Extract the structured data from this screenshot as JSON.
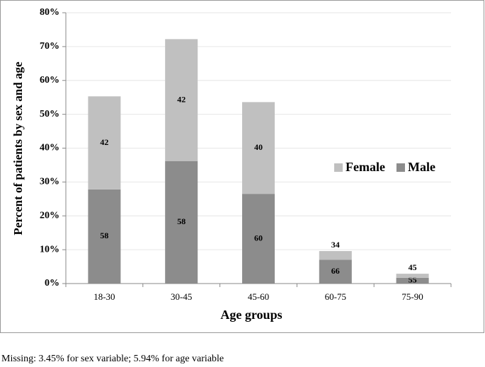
{
  "chart_data": {
    "type": "stacked-bar",
    "categories": [
      "18-30",
      "30-45",
      "45-60",
      "60-75",
      "75-90"
    ],
    "series": [
      {
        "name": "Male",
        "color": "#8c8c8c",
        "values": [
          27.8,
          36.2,
          26.5,
          7.0,
          1.7
        ],
        "labels": [
          58,
          58,
          60,
          66,
          55
        ]
      },
      {
        "name": "Female",
        "color": "#c0c0c0",
        "values": [
          27.5,
          36.0,
          27.1,
          2.6,
          1.2
        ],
        "labels": [
          42,
          42,
          40,
          34,
          45
        ]
      }
    ],
    "ylim": [
      0,
      80
    ],
    "yticks": [
      {
        "value": 0,
        "label": "0%"
      },
      {
        "value": 10,
        "label": "10%"
      },
      {
        "value": 20,
        "label": "20%"
      },
      {
        "value": 30,
        "label": "30%"
      },
      {
        "value": 40,
        "label": "40%"
      },
      {
        "value": 50,
        "label": "50%"
      },
      {
        "value": 60,
        "label": "60%"
      },
      {
        "value": 70,
        "label": "70%"
      },
      {
        "value": 80,
        "label": "80%"
      }
    ],
    "ylabel": "Percent of patients by sex and age",
    "xlabel": "Age groups",
    "grid": true,
    "legend": "right",
    "footnote": "Missing: 3.45% for sex variable; 5.94% for age variable"
  }
}
